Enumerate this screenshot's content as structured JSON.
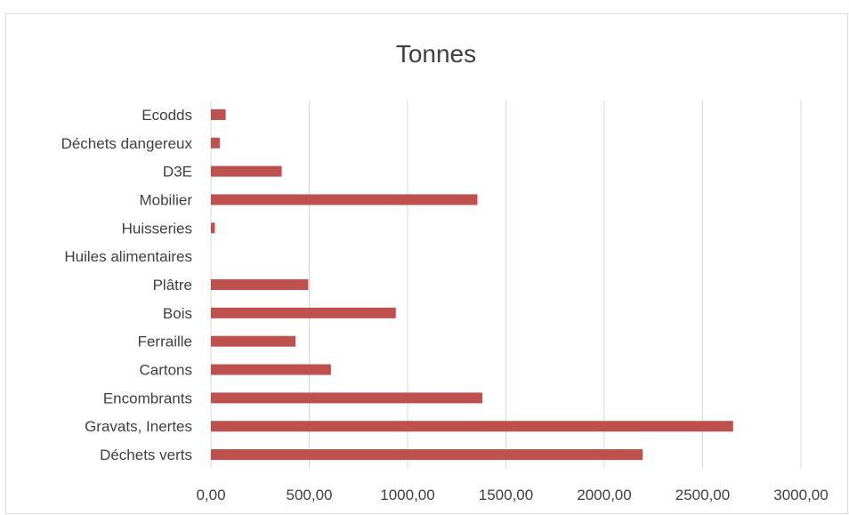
{
  "chart_data": {
    "type": "bar",
    "orientation": "horizontal",
    "title": "Tonnes",
    "xlabel": "",
    "ylabel": "",
    "xlim": [
      0,
      3000
    ],
    "x_ticks": [
      "0,00",
      "500,00",
      "1000,00",
      "1500,00",
      "2000,00",
      "2500,00",
      "3000,00"
    ],
    "x_tick_values": [
      0,
      500,
      1000,
      1500,
      2000,
      2500,
      3000
    ],
    "grid": true,
    "legend": "none",
    "bar_color": "#c0504d",
    "categories": [
      "Ecodds",
      "Déchets dangereux",
      "D3E",
      "Mobilier",
      "Huisseries",
      "Huiles alimentaires",
      "Plâtre",
      "Bois",
      "Ferraille",
      "Cartons",
      "Encombrants",
      "Gravats, Inertes",
      "Déchets verts"
    ],
    "values": [
      75,
      45,
      360,
      1355,
      20,
      0,
      495,
      940,
      430,
      610,
      1380,
      2655,
      2195
    ]
  }
}
